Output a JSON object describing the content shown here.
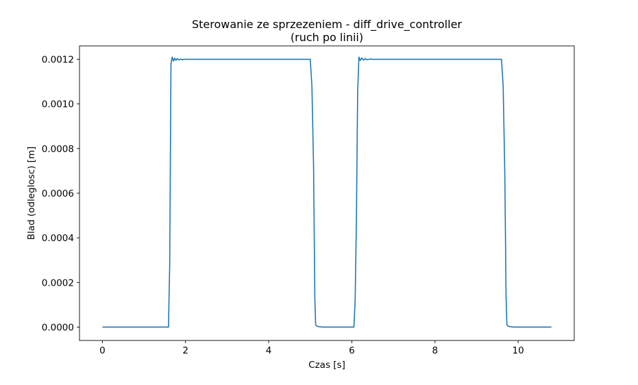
{
  "chart_data": {
    "type": "line",
    "title": "Sterowanie ze sprzezeniem - diff_drive_controller",
    "subtitle": "(ruch po linii)",
    "xlabel": "Czas [s]",
    "ylabel": "Blad (odleglosc) [m]",
    "xlim": [
      -0.55,
      11.35
    ],
    "ylim": [
      -6e-05,
      0.00126
    ],
    "xticks": [
      0,
      2,
      4,
      6,
      8,
      10
    ],
    "xtick_labels": [
      "0",
      "2",
      "4",
      "6",
      "8",
      "10"
    ],
    "yticks": [
      0.0,
      0.0002,
      0.0004,
      0.0006,
      0.0008,
      0.001,
      0.0012
    ],
    "ytick_labels": [
      "0.0000",
      "0.0002",
      "0.0004",
      "0.0006",
      "0.0008",
      "0.0010",
      "0.0012"
    ],
    "grid": false,
    "line_color": "#1f77b4",
    "series": [
      {
        "x": [
          0.0,
          1.59,
          1.62,
          1.65,
          1.68,
          1.71,
          1.74,
          1.77,
          1.8,
          1.84,
          1.88,
          1.93,
          1.98,
          2.05,
          2.15,
          2.3,
          4.0,
          5.0,
          5.04,
          5.08,
          5.11,
          5.13,
          5.15,
          5.2,
          5.3,
          5.5,
          6.05,
          6.08,
          6.11,
          6.14,
          6.17,
          6.2,
          6.24,
          6.28,
          6.32,
          6.37,
          6.43,
          6.5,
          6.6,
          6.7,
          8.0,
          9.6,
          9.64,
          9.68,
          9.71,
          9.73,
          9.75,
          9.8,
          9.9,
          10.1,
          10.8
        ],
        "y": [
          0.0,
          0.0,
          0.00028,
          0.00118,
          0.00121,
          0.001192,
          0.001205,
          0.001195,
          0.001203,
          0.001197,
          0.001201,
          0.001198,
          0.0012,
          0.0012,
          0.0012,
          0.0012,
          0.0012,
          0.0012,
          0.00108,
          0.00072,
          0.00013,
          1e-05,
          5e-06,
          2e-06,
          0.0,
          0.0,
          0.0,
          0.00012,
          0.00048,
          0.00105,
          0.00121,
          0.001195,
          0.001206,
          0.001196,
          0.001203,
          0.001198,
          0.001201,
          0.0012,
          0.0012,
          0.0012,
          0.0012,
          0.0012,
          0.00108,
          0.00068,
          0.00013,
          1e-05,
          5e-06,
          2e-06,
          0.0,
          0.0,
          0.0
        ]
      }
    ]
  }
}
